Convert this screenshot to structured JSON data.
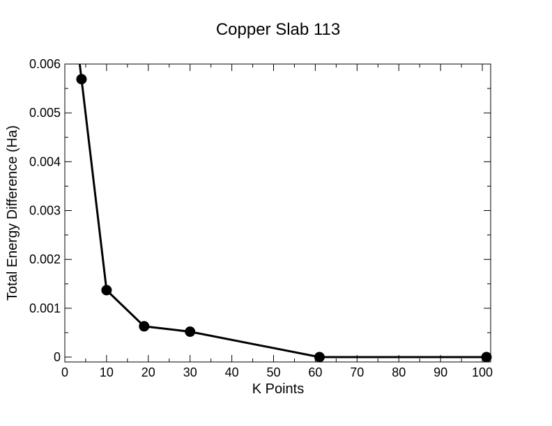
{
  "chart_data": {
    "type": "line",
    "title": "Copper Slab 113",
    "xlabel": "K Points",
    "ylabel": "Total Energy Difference (Ha)",
    "xlim": [
      0,
      102
    ],
    "ylim": [
      -0.0001,
      0.006
    ],
    "xticks": [
      "0",
      "10",
      "20",
      "30",
      "40",
      "50",
      "60",
      "70",
      "80",
      "90",
      "100"
    ],
    "yticks": [
      "0",
      "0.001",
      "0.002",
      "0.003",
      "0.004",
      "0.005",
      "0.006"
    ],
    "grid": false,
    "legend": "none",
    "series": [
      {
        "x": [
          4,
          10,
          19,
          30,
          61,
          101
        ],
        "y": [
          0.00569,
          0.00137,
          0.00063,
          0.00052,
          0.0,
          0.0
        ],
        "color": "#000000",
        "marker": "circle"
      }
    ]
  }
}
